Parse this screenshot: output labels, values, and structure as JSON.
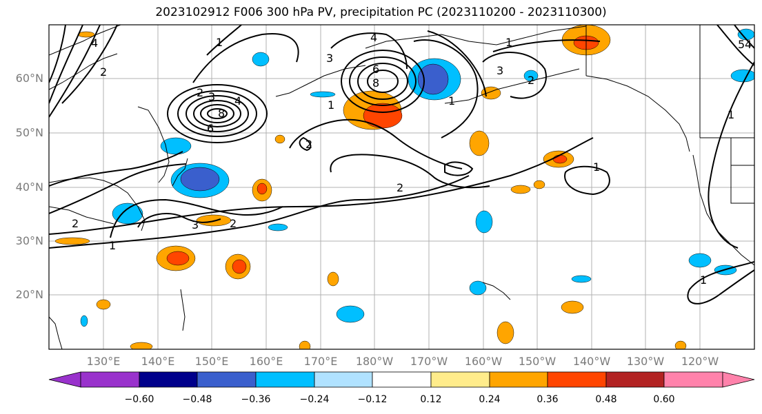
{
  "title": "2023102912 F006 300 hPa PV, precipitation PC (2023110200 - 2023110300)",
  "lat_labels": [
    "60°N",
    "50°N",
    "40°N",
    "30°N",
    "20°N"
  ],
  "lon_labels": [
    "130°E",
    "140°E",
    "150°E",
    "160°E",
    "170°E",
    "180°W",
    "170°W",
    "160°W",
    "150°W",
    "140°W",
    "130°W",
    "120°W"
  ],
  "colorbar": {
    "colors": [
      "#9932cc",
      "#00008b",
      "#3a5fcd",
      "#00bfff",
      "#b0e2ff",
      "#ffffff",
      "#ffec8b",
      "#ffa500",
      "#ff4500",
      "#b22222",
      "#ff82ab"
    ],
    "tick_labels": [
      "−0.60",
      "−0.48",
      "−0.36",
      "−0.24",
      "−0.12",
      "0.12",
      "0.24",
      "0.36",
      "0.48",
      "0.60"
    ]
  },
  "contour_labels": [
    "1",
    "2",
    "3",
    "4",
    "5",
    "6",
    "8"
  ]
}
